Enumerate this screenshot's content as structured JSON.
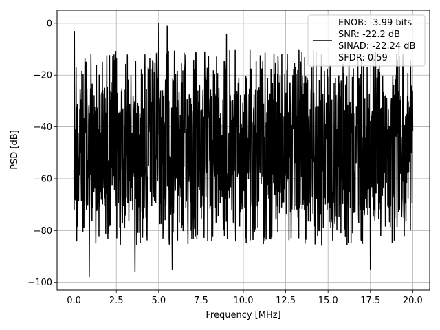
{
  "chart_data": {
    "type": "line",
    "xlabel": "Frequency [MHz]",
    "ylabel": "PSD [dB]",
    "xlim": [
      -1.0,
      21.0
    ],
    "ylim": [
      -103.0,
      5.0
    ],
    "x_ticks": [
      0.0,
      2.5,
      5.0,
      7.5,
      10.0,
      12.5,
      15.0,
      17.5,
      20.0
    ],
    "x_tick_labels": [
      "0.0",
      "2.5",
      "5.0",
      "7.5",
      "10.0",
      "12.5",
      "15.0",
      "17.5",
      "20.0"
    ],
    "y_ticks": [
      0,
      -20,
      -40,
      -60,
      -80,
      -100
    ],
    "y_tick_labels": [
      "0",
      "−20",
      "−40",
      "−60",
      "−80",
      "−100"
    ],
    "grid": true,
    "legend_position": "top-right",
    "legend_entries": [
      "ENOB: -3.99 bits",
      "SNR: -22.2 dB",
      "SINAD: -22.24 dB",
      "SFDR: 0.59"
    ],
    "series": [
      {
        "color": "#000000",
        "x_start": 0.0,
        "x_end": 20.0,
        "points": 1600,
        "noise_floor_db": -55,
        "value_range_db": [
          -98,
          0
        ],
        "peaks": [
          {
            "x": 0.02,
            "y": -3
          },
          {
            "x": 5.0,
            "y": 0
          },
          {
            "x": 5.5,
            "y": -1
          },
          {
            "x": 9.0,
            "y": -4
          }
        ],
        "dips": [
          {
            "x": 0.9,
            "y": -98
          },
          {
            "x": 3.6,
            "y": -96
          },
          {
            "x": 5.8,
            "y": -95
          },
          {
            "x": 17.5,
            "y": -95
          }
        ]
      }
    ]
  }
}
